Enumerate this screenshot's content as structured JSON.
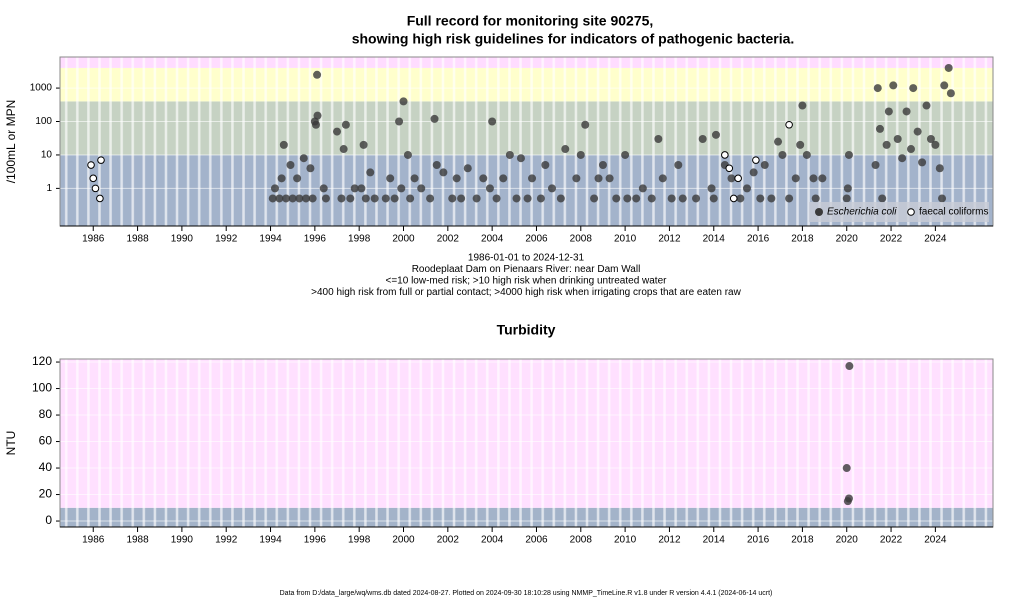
{
  "chart_data": [
    {
      "type": "scatter",
      "title": [
        "Full record for monitoring site 90275,",
        "showing high risk guidelines for indicators of pathogenic bacteria."
      ],
      "y_label": "/100mL or MPN",
      "log_y": true,
      "xlim": [
        1984.5,
        2026.6
      ],
      "xticks": [
        1986,
        1988,
        1990,
        1992,
        1994,
        1996,
        1998,
        2000,
        2002,
        2004,
        2006,
        2008,
        2010,
        2012,
        2014,
        2016,
        2018,
        2020,
        2022,
        2024
      ],
      "ylim": [
        0.075,
        8500
      ],
      "yticks": [
        1,
        10,
        100,
        1000
      ],
      "grid": true,
      "band_limits": [
        10,
        400,
        4000
      ],
      "band_colors": [
        "#a3b3cb",
        "#c6d2c3",
        "#ffffcc",
        "#ffdcff"
      ],
      "legend": "lower right",
      "notes": [
        "1986-01-01 to 2024-12-31",
        "Roodeplaat Dam on Pienaars River: near Dam Wall",
        "<=10 low-med risk; >10 high risk when drinking untreated water",
        ">400 high risk from full or partial contact; >4000 high risk when irrigating crops that are eaten raw"
      ],
      "series": [
        {
          "name": "Escherichia coli",
          "color": "#3a3a3a",
          "hollow": false,
          "x": [
            1994.1,
            1994.2,
            1994.4,
            1994.5,
            1994.6,
            1994.7,
            1994.9,
            1995.0,
            1995.2,
            1995.3,
            1995.5,
            1995.6,
            1995.8,
            1995.9,
            1996.0,
            1996.05,
            1996.1,
            1996.12,
            1996.4,
            1996.5,
            1997.0,
            1997.2,
            1997.3,
            1997.4,
            1997.6,
            1997.8,
            1998.1,
            1998.2,
            1998.3,
            1998.5,
            1998.7,
            1999.2,
            1999.4,
            1999.6,
            1999.8,
            1999.9,
            2000.0,
            2000.2,
            2000.3,
            2000.5,
            2000.8,
            2001.2,
            2001.4,
            2001.5,
            2001.8,
            2002.2,
            2002.4,
            2002.6,
            2002.9,
            2003.3,
            2003.6,
            2003.9,
            2004.0,
            2004.2,
            2004.5,
            2004.8,
            2005.1,
            2005.3,
            2005.6,
            2005.8,
            2006.2,
            2006.4,
            2006.7,
            2007.1,
            2007.3,
            2007.8,
            2008.0,
            2008.2,
            2008.6,
            2008.8,
            2009.0,
            2009.3,
            2009.6,
            2010.0,
            2010.1,
            2010.5,
            2010.8,
            2011.2,
            2011.5,
            2011.7,
            2012.1,
            2012.4,
            2012.6,
            2013.2,
            2013.5,
            2013.9,
            2014.0,
            2014.1,
            2014.5,
            2014.8,
            2015.2,
            2015.5,
            2015.8,
            2016.1,
            2016.3,
            2016.6,
            2016.9,
            2017.1,
            2017.4,
            2017.7,
            2017.9,
            2018.0,
            2018.2,
            2018.5,
            2018.6,
            2018.9,
            2020.0,
            2020.05,
            2020.1,
            2021.3,
            2021.4,
            2021.5,
            2021.6,
            2021.8,
            2021.9,
            2022.1,
            2022.3,
            2022.5,
            2022.7,
            2022.9,
            2023.0,
            2023.2,
            2023.4,
            2023.6,
            2023.8,
            2024.0,
            2024.2,
            2024.3,
            2024.4,
            2024.6,
            2024.7
          ],
          "values": [
            0.5,
            1,
            0.5,
            2,
            20,
            0.5,
            5,
            0.5,
            2,
            0.5,
            8,
            0.5,
            4,
            0.5,
            100,
            80,
            2500,
            150,
            1,
            0.5,
            50,
            0.5,
            15,
            80,
            0.5,
            1,
            1,
            20,
            0.5,
            3,
            0.5,
            0.5,
            2,
            0.5,
            100,
            1,
            400,
            10,
            0.5,
            2,
            1,
            0.5,
            120,
            5,
            3,
            0.5,
            2,
            0.5,
            4,
            0.5,
            2,
            1,
            100,
            0.5,
            2,
            10,
            0.5,
            8,
            0.5,
            2,
            0.5,
            5,
            1,
            0.5,
            15,
            2,
            10,
            80,
            0.5,
            2,
            5,
            2,
            0.5,
            10,
            0.5,
            0.5,
            1,
            0.5,
            30,
            2,
            0.5,
            5,
            0.5,
            0.5,
            30,
            1,
            0.5,
            40,
            5,
            2,
            0.5,
            1,
            3,
            0.5,
            5,
            0.5,
            25,
            10,
            0.5,
            2,
            20,
            300,
            10,
            2,
            0.5,
            2,
            0.5,
            1,
            10,
            5,
            1000,
            60,
            0.5,
            20,
            200,
            1200,
            30,
            8,
            200,
            15,
            1000,
            50,
            6,
            300,
            30,
            20,
            4,
            0.5,
            1200,
            4000,
            700
          ]
        },
        {
          "name": "faecal coliforms",
          "color": "#000000",
          "hollow": true,
          "x": [
            1985.9,
            1986.0,
            1986.1,
            1986.3,
            1986.35,
            2014.5,
            2014.7,
            2014.9,
            2015.1,
            2015.9,
            2017.4
          ],
          "values": [
            5,
            2,
            1,
            0.5,
            7,
            10,
            4,
            0.5,
            2,
            7,
            80
          ]
        }
      ]
    },
    {
      "type": "scatter",
      "title": "Turbidity",
      "y_label": "NTU",
      "log_y": false,
      "xlim": [
        1984.5,
        2026.6
      ],
      "xticks": [
        1986,
        1988,
        1990,
        1992,
        1994,
        1996,
        1998,
        2000,
        2002,
        2004,
        2006,
        2008,
        2010,
        2012,
        2014,
        2016,
        2018,
        2020,
        2022,
        2024
      ],
      "ylim": [
        -4.5,
        122.3
      ],
      "yticks": [
        0,
        20,
        40,
        60,
        80,
        100,
        120
      ],
      "grid": true,
      "band_limits": [
        10
      ],
      "band_colors": [
        "#a3b3c9",
        "#ffe0ff"
      ],
      "series": [
        {
          "name": "Turbidity",
          "color": "#3a3a3a",
          "hollow": false,
          "x": [
            2020.0,
            2020.05,
            2020.1,
            2020.12
          ],
          "values": [
            40,
            15,
            17,
            117
          ]
        }
      ]
    }
  ],
  "footer": "Data from D:/data_large/wq/wms.db dated 2024-08-27. Plotted on 2024-09-30 18:10:28 using NMMP_TimeLine.R v1.8 under R version 4.4.1 (2024-06-14 ucrt)"
}
